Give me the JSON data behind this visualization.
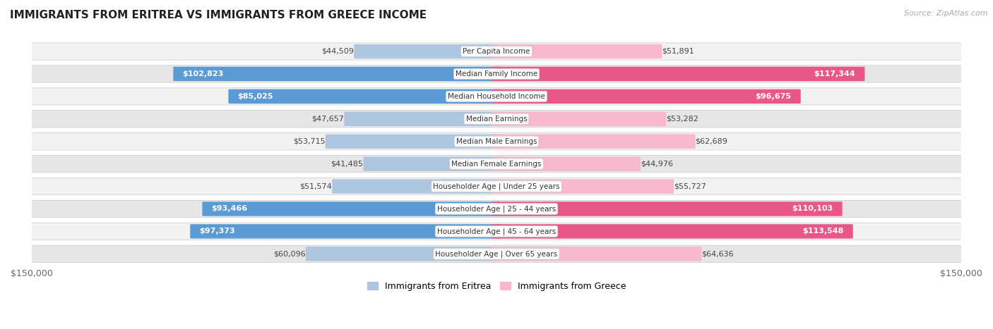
{
  "title": "IMMIGRANTS FROM ERITREA VS IMMIGRANTS FROM GREECE INCOME",
  "source": "Source: ZipAtlas.com",
  "categories": [
    "Per Capita Income",
    "Median Family Income",
    "Median Household Income",
    "Median Earnings",
    "Median Male Earnings",
    "Median Female Earnings",
    "Householder Age | Under 25 years",
    "Householder Age | 25 - 44 years",
    "Householder Age | 45 - 64 years",
    "Householder Age | Over 65 years"
  ],
  "eritrea_values": [
    44509,
    102823,
    85025,
    47657,
    53715,
    41485,
    51574,
    93466,
    97373,
    60096
  ],
  "greece_values": [
    51891,
    117344,
    96675,
    53282,
    62689,
    44976,
    55727,
    110103,
    113548,
    64636
  ],
  "eritrea_labels": [
    "$44,509",
    "$102,823",
    "$85,025",
    "$47,657",
    "$53,715",
    "$41,485",
    "$51,574",
    "$93,466",
    "$97,373",
    "$60,096"
  ],
  "greece_labels": [
    "$51,891",
    "$117,344",
    "$96,675",
    "$53,282",
    "$62,689",
    "$44,976",
    "$55,727",
    "$110,103",
    "$113,548",
    "$64,636"
  ],
  "max_value": 150000,
  "eritrea_color_light": "#aec6e0",
  "eritrea_color_dark": "#5b9bd5",
  "greece_color_light": "#f7b8ce",
  "greece_color_dark": "#e8568a",
  "bar_height": 0.62,
  "background_color": "#ffffff",
  "row_bg_light": "#f2f2f2",
  "row_bg_dark": "#e6e6e6",
  "legend_eritrea": "Immigrants from Eritrea",
  "legend_greece": "Immigrants from Greece",
  "threshold_large": 70000,
  "title_fontsize": 11,
  "label_fontsize": 8,
  "cat_fontsize": 7.5
}
